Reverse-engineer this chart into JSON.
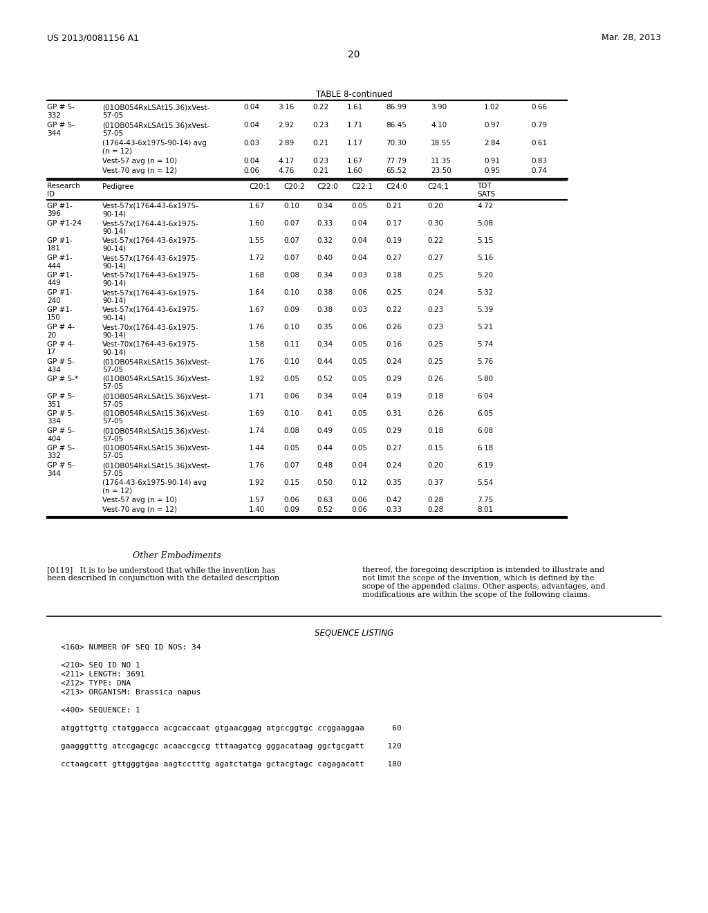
{
  "page_number": "20",
  "patent_left": "US 2013/0081156 A1",
  "patent_right": "Mar. 28, 2013",
  "table_title": "TABLE 8-continued",
  "section_header": "Other Embodiments",
  "paragraph_0119_left": "[0119]   It is to be understood that while the invention has\nbeen described in conjunction with the detailed description",
  "paragraph_0119_right": "thereof, the foregoing description is intended to illustrate and\nnot limit the scope of the invention, which is defined by the\nscope of the appended claims. Other aspects, advantages, and\nmodifications are within the scope of the following claims.",
  "seq_listing_title": "SEQUENCE LISTING",
  "seq_lines": [
    "<160> NUMBER OF SEQ ID NOS: 34",
    "",
    "<210> SEQ ID NO 1",
    "<211> LENGTH: 3691",
    "<212> TYPE: DNA",
    "<213> ORGANISM: Brassica napus",
    "",
    "<400> SEQUENCE: 1",
    "",
    "atggttgttg ctatggacca acgcaccaat gtgaacggag atgccggtgc ccggaaggaa      60",
    "",
    "gaagggtttg atccgagcgc acaaccgccg tttaagatcg gggacataag ggctgcgatt     120",
    "",
    "cctaagcatt gttgggtgaa aagtcctttg agatctatga gctacgtagc cagagacatt     180"
  ],
  "top_table_rows": [
    [
      "GP # 5-",
      "332",
      "(01OB054RxLSAt15.36)xVest-",
      "57-05",
      "0.04",
      "3.16",
      "0.22",
      "1.61",
      "86.99",
      "3.90",
      "1.02",
      "0.66"
    ],
    [
      "GP # 5-",
      "344",
      "(01OB054RxLSAt15.36)xVest-",
      "57-05",
      "0.04",
      "2.92",
      "0.23",
      "1.71",
      "86.45",
      "4.10",
      "0.97",
      "0.79"
    ],
    [
      "",
      "",
      "(1764-43-6x1975-90-14) avg",
      "(n = 12)",
      "0.03",
      "2.89",
      "0.21",
      "1.17",
      "70.30",
      "18.55",
      "2.84",
      "0.61"
    ],
    [
      "",
      "",
      "Vest-57 avg (n = 10)",
      "",
      "0.04",
      "4.17",
      "0.23",
      "1.67",
      "77.79",
      "11.35",
      "0.91",
      "0.83"
    ],
    [
      "",
      "",
      "Vest-70 avg (n = 12)",
      "",
      "0.06",
      "4.76",
      "0.21",
      "1.60",
      "65.52",
      "23.50",
      "0.95",
      "0.74"
    ]
  ],
  "bottom_table_rows": [
    [
      "GP #1-",
      "396",
      "Vest-57x(1764-43-6x1975-",
      "90-14)",
      "1.67",
      "0.10",
      "0.34",
      "0.05",
      "0.21",
      "0.20",
      "4.72"
    ],
    [
      "GP #1-24",
      "",
      "Vest-57x(1764-43-6x1975-",
      "90-14)",
      "1.60",
      "0.07",
      "0.33",
      "0.04",
      "0.17",
      "0.30",
      "5.08"
    ],
    [
      "GP #1-",
      "181",
      "Vest-57x(1764-43-6x1975-",
      "90-14)",
      "1.55",
      "0.07",
      "0.32",
      "0.04",
      "0.19",
      "0.22",
      "5.15"
    ],
    [
      "GP #1-",
      "444",
      "Vest-57x(1764-43-6x1975-",
      "90-14)",
      "1.72",
      "0.07",
      "0.40",
      "0.04",
      "0.27",
      "0.27",
      "5.16"
    ],
    [
      "GP #1-",
      "449",
      "Vest-57x(1764-43-6x1975-",
      "90-14)",
      "1.68",
      "0.08",
      "0.34",
      "0.03",
      "0.18",
      "0.25",
      "5.20"
    ],
    [
      "GP #1-",
      "240",
      "Vest-57x(1764-43-6x1975-",
      "90-14)",
      "1.64",
      "0.10",
      "0.38",
      "0.06",
      "0.25",
      "0.24",
      "5.32"
    ],
    [
      "GP #1-",
      "150",
      "Vest-57x(1764-43-6x1975-",
      "90-14)",
      "1.67",
      "0.09",
      "0.38",
      "0.03",
      "0.22",
      "0.23",
      "5.39"
    ],
    [
      "GP # 4-",
      "20",
      "Vest-70x(1764-43-6x1975-",
      "90-14)",
      "1.76",
      "0.10",
      "0.35",
      "0.06",
      "0.26",
      "0.23",
      "5.21"
    ],
    [
      "GP # 4-",
      "17",
      "Vest-70x(1764-43-6x1975-",
      "90-14)",
      "1.58",
      "0.11",
      "0.34",
      "0.05",
      "0.16",
      "0.25",
      "5.74"
    ],
    [
      "GP # 5-",
      "434",
      "(01OB054RxLSAt15.36)xVest-",
      "57-05",
      "1.76",
      "0.10",
      "0.44",
      "0.05",
      "0.24",
      "0.25",
      "5.76"
    ],
    [
      "GP # 5-*",
      "",
      "(01OB054RxLSAt15.36)xVest-",
      "57-05",
      "1.92",
      "0.05",
      "0.52",
      "0.05",
      "0.29",
      "0.26",
      "5.80"
    ],
    [
      "GP # 5-",
      "351",
      "(01OB054RxLSAt15.36)xVest-",
      "57-05",
      "1.71",
      "0.06",
      "0.34",
      "0.04",
      "0.19",
      "0.18",
      "6.04"
    ],
    [
      "GP # 5-",
      "334",
      "(01OB054RxLSAt15.36)xVest-",
      "57-05",
      "1.69",
      "0.10",
      "0.41",
      "0.05",
      "0.31",
      "0.26",
      "6.05"
    ],
    [
      "GP # 5-",
      "404",
      "(01OB054RxLSAt15.36)xVest-",
      "57-05",
      "1.74",
      "0.08",
      "0.49",
      "0.05",
      "0.29",
      "0.18",
      "6.08"
    ],
    [
      "GP # 5-",
      "332",
      "(01OB054RxLSAt15.36)xVest-",
      "57-05",
      "1.44",
      "0.05",
      "0.44",
      "0.05",
      "0.27",
      "0.15",
      "6.18"
    ],
    [
      "GP # 5-",
      "344",
      "(01OB054RxLSAt15.36)xVest-",
      "57-05",
      "1.76",
      "0.07",
      "0.48",
      "0.04",
      "0.24",
      "0.20",
      "6.19"
    ],
    [
      "",
      "",
      "(1764-43-6x1975-90-14) avg",
      "(n = 12)",
      "1.92",
      "0.15",
      "0.50",
      "0.12",
      "0.35",
      "0.37",
      "5.54"
    ],
    [
      "",
      "",
      "Vest-57 avg (n = 10)",
      "",
      "1.57",
      "0.06",
      "0.63",
      "0.06",
      "0.42",
      "0.28",
      "7.75"
    ],
    [
      "",
      "",
      "Vest-70 avg (n = 12)",
      "",
      "1.40",
      "0.09",
      "0.52",
      "0.06",
      "0.33",
      "0.28",
      "8.01"
    ]
  ]
}
